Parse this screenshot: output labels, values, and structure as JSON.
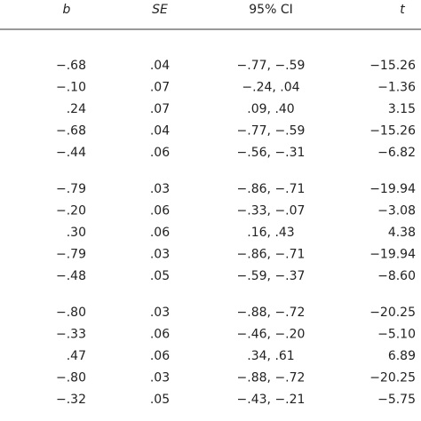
{
  "table": {
    "header": [
      "b",
      "SE",
      "95% CI",
      "t"
    ],
    "groups": [
      [
        [
          "−.68",
          ".04",
          "−.77, −.59",
          "−15.26"
        ],
        [
          "−.10",
          ".07",
          "−.24, .04",
          "−1.36"
        ],
        [
          ".24",
          ".07",
          ".09, .40",
          "3.15"
        ],
        [
          "−.68",
          ".04",
          "−.77, −.59",
          "−15.26"
        ],
        [
          "−.44",
          ".06",
          "−.56, −.31",
          "−6.82"
        ]
      ],
      [
        [
          "−.79",
          ".03",
          "−.86, −.71",
          "−19.94"
        ],
        [
          "−.20",
          ".06",
          "−.33, −.07",
          "−3.08"
        ],
        [
          ".30",
          ".06",
          ".16, .43",
          "4.38"
        ],
        [
          "−.79",
          ".03",
          "−.86, −.71",
          "−19.94"
        ],
        [
          "−.48",
          ".05",
          "−.59, −.37",
          "−8.60"
        ]
      ],
      [
        [
          "−.80",
          ".03",
          "−.88, −.72",
          "−20.25"
        ],
        [
          "−.33",
          ".06",
          "−.46, −.20",
          "−5.10"
        ],
        [
          ".47",
          ".06",
          ".34, .61",
          "6.89"
        ],
        [
          "−.80",
          ".03",
          "−.88, −.72",
          "−20.25"
        ],
        [
          "−.32",
          ".05",
          "−.43, −.21",
          "−5.75"
        ]
      ]
    ]
  }
}
